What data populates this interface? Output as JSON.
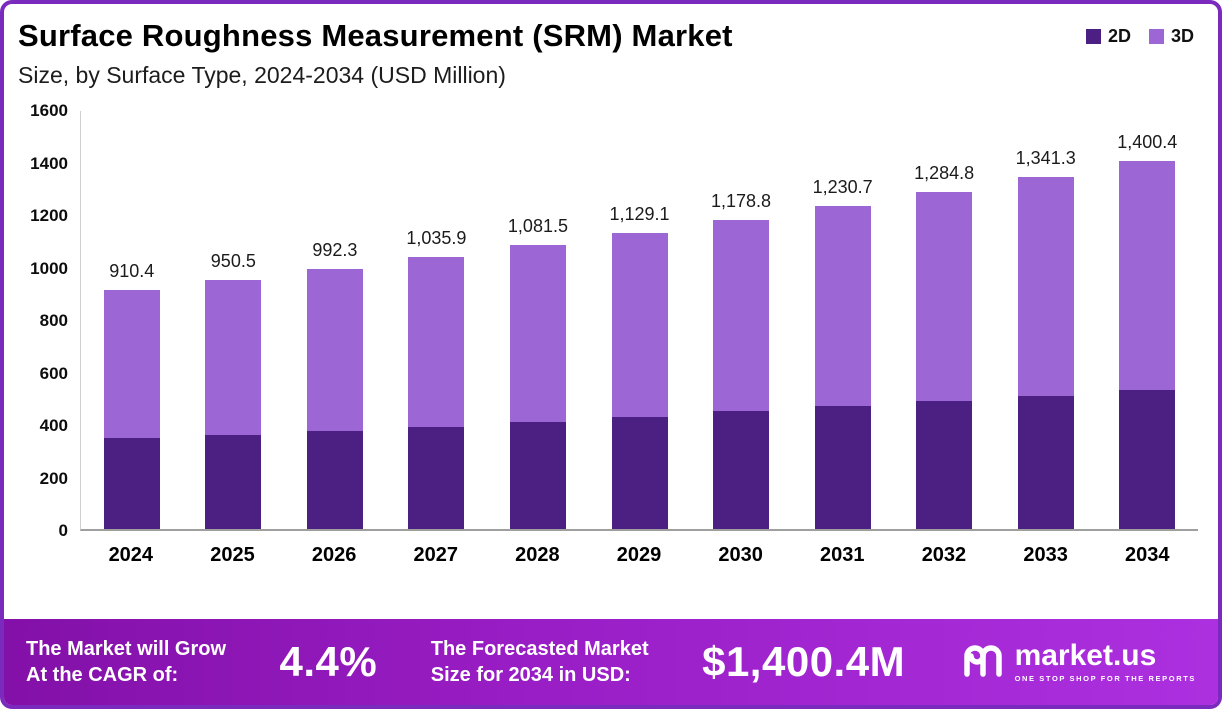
{
  "header": {
    "title": "Surface Roughness Measurement (SRM) Market",
    "subtitle": "Size, by Surface Type, 2024-2034 (USD Million)"
  },
  "legend": [
    {
      "label": "2D",
      "color": "#4B2082"
    },
    {
      "label": "3D",
      "color": "#9C67D5"
    }
  ],
  "chart_data": {
    "type": "bar",
    "stacked": true,
    "title": "Surface Roughness Measurement (SRM) Market",
    "subtitle": "Size, by Surface Type, 2024-2034 (USD Million)",
    "categories": [
      "2024",
      "2025",
      "2026",
      "2027",
      "2028",
      "2029",
      "2030",
      "2031",
      "2032",
      "2033",
      "2034"
    ],
    "series": [
      {
        "name": "2D",
        "color": "#4B2082",
        "values": [
          345,
          358,
          373,
          390,
          407,
          428,
          448,
          467,
          487,
          508,
          528
        ]
      },
      {
        "name": "3D",
        "color": "#9C67D5",
        "values": [
          565.4,
          592.5,
          619.3,
          645.9,
          674.5,
          701.1,
          730.8,
          763.7,
          797.8,
          833.3,
          872.4
        ]
      }
    ],
    "totals": [
      910.4,
      950.5,
      992.3,
      1035.9,
      1081.5,
      1129.1,
      1178.8,
      1230.7,
      1284.8,
      1341.3,
      1400.4
    ],
    "total_labels": [
      "910.4",
      "950.5",
      "992.3",
      "1,035.9",
      "1,081.5",
      "1,129.1",
      "1,178.8",
      "1,230.7",
      "1,284.8",
      "1,341.3",
      "1,400.4"
    ],
    "ylim": [
      0,
      1600
    ],
    "yticks": [
      0,
      200,
      400,
      600,
      800,
      1000,
      1200,
      1400,
      1600
    ],
    "legend_position": "top-right",
    "grid": false
  },
  "footer": {
    "cagr_line1": "The Market will Grow",
    "cagr_line2": "At the CAGR of:",
    "cagr_value": "4.4%",
    "forecast_line1": "The Forecasted Market",
    "forecast_line2": "Size for 2034 in USD:",
    "forecast_value": "$1,400.4M",
    "brand": "market.us",
    "brand_tagline": "ONE STOP SHOP FOR THE REPORTS"
  }
}
